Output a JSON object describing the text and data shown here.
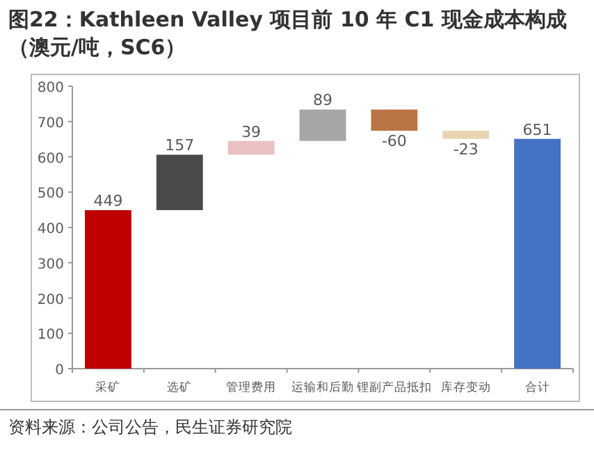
{
  "chart_data": {
    "type": "bar",
    "title": "图22：Kathleen Valley 项目前 10 年 C1 现金成本构成（澳元/吨，SC6）",
    "categories": [
      "采矿",
      "选矿",
      "管理费用",
      "运输和后勤",
      "锂副产品抵扣",
      "库存变动",
      "合计"
    ],
    "values": [
      449,
      157,
      39,
      89,
      -60,
      -23,
      651
    ],
    "base": [
      0,
      449,
      606,
      645,
      734,
      674,
      0
    ],
    "colors": [
      "#c00000",
      "#4a4a4c",
      "#ebc0c0",
      "#a6a6a6",
      "#bb7443",
      "#e8d4b0",
      "#4472c4"
    ],
    "ylim": [
      0,
      800
    ],
    "yticks": [
      0,
      100,
      200,
      300,
      400,
      500,
      600,
      700,
      800
    ],
    "data_labels": true,
    "grid": false,
    "annotations": [
      "资料来源：公司公告，民生证券研究院"
    ]
  }
}
